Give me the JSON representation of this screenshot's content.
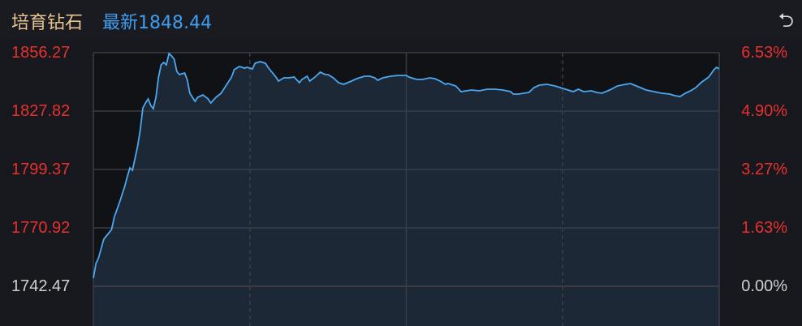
{
  "header": {
    "title": "培育钻石",
    "latest_label": "最新",
    "latest_value": "1848.44",
    "back_icon": "return-arrow-icon"
  },
  "colors": {
    "up": "#e8302e",
    "neutral": "#cfcfcf",
    "line": "#4aa8f2",
    "fill": "#1d2836",
    "title": "#e6c38f",
    "latest": "#3f9ef0"
  },
  "chart_data": {
    "type": "area",
    "title": "",
    "xlabel": "",
    "ylabel": "",
    "xlim": [
      0,
      240
    ],
    "ylim": [
      1742.47,
      1856.27
    ],
    "grid": true,
    "left_ticks": [
      "1856.27",
      "1827.82",
      "1799.37",
      "1770.92",
      "1742.47"
    ],
    "right_ticks": [
      "6.53%",
      "4.90%",
      "3.27%",
      "1.63%",
      "0.00%"
    ],
    "x": [
      0,
      1,
      2,
      4,
      6,
      7,
      8,
      10,
      12,
      13,
      14,
      15,
      16,
      17,
      18,
      19,
      20,
      21,
      22,
      23,
      24,
      25,
      26,
      27,
      28,
      29,
      30,
      31,
      32,
      33,
      35,
      36,
      37,
      39,
      40,
      42,
      44,
      45,
      47,
      49,
      51,
      53,
      54,
      56,
      58,
      59,
      61,
      62,
      64,
      66,
      67,
      68,
      70,
      71,
      73,
      75,
      77,
      79,
      80,
      82,
      83,
      85,
      87,
      89,
      90,
      92,
      94,
      96,
      99,
      101,
      104,
      106,
      108,
      109,
      111,
      114,
      117,
      120,
      121,
      124,
      126,
      129,
      131,
      133,
      135,
      136,
      139,
      141,
      143,
      145,
      148,
      151,
      154,
      157,
      160,
      161,
      163,
      167,
      169,
      171,
      174,
      177,
      180,
      182,
      184,
      186,
      188,
      191,
      193,
      195,
      198,
      201,
      204,
      206,
      209,
      212,
      215,
      218,
      221,
      223,
      225,
      227,
      229,
      231,
      233,
      236,
      238,
      239,
      240
    ],
    "values": [
      1746.42,
      1753.53,
      1756.3,
      1765.39,
      1768.55,
      1770.13,
      1776.06,
      1783.17,
      1791.07,
      1795.81,
      1800.16,
      1798.97,
      1804.9,
      1810.83,
      1818.73,
      1829.4,
      1831.77,
      1833.75,
      1830.59,
      1829.01,
      1834.54,
      1844.42,
      1850.34,
      1851.53,
      1850.34,
      1855.87,
      1854.69,
      1853.11,
      1847.18,
      1845.6,
      1846.39,
      1843.23,
      1836.51,
      1832.56,
      1834.54,
      1835.72,
      1833.75,
      1831.77,
      1834.54,
      1836.51,
      1840.46,
      1844.42,
      1847.97,
      1849.55,
      1848.76,
      1849.16,
      1848.37,
      1851.13,
      1851.92,
      1851.13,
      1849.16,
      1847.58,
      1844.42,
      1842.44,
      1844.02,
      1844.02,
      1844.42,
      1841.65,
      1843.23,
      1844.81,
      1842.44,
      1844.42,
      1846.79,
      1845.6,
      1845.6,
      1844.02,
      1841.65,
      1840.86,
      1842.44,
      1843.63,
      1844.81,
      1844.81,
      1844.02,
      1842.84,
      1844.02,
      1844.81,
      1845.21,
      1845.21,
      1844.42,
      1843.23,
      1843.23,
      1844.02,
      1843.63,
      1842.44,
      1840.86,
      1841.25,
      1840.07,
      1837.3,
      1837.7,
      1838.09,
      1837.7,
      1838.49,
      1838.49,
      1838.09,
      1837.3,
      1836.12,
      1836.12,
      1836.91,
      1839.28,
      1840.46,
      1840.86,
      1840.07,
      1838.88,
      1838.09,
      1837.3,
      1838.49,
      1837.3,
      1837.7,
      1836.91,
      1836.51,
      1838.09,
      1840.07,
      1840.86,
      1841.25,
      1839.67,
      1838.09,
      1837.3,
      1836.51,
      1836.12,
      1835.33,
      1834.93,
      1836.51,
      1837.7,
      1839.28,
      1841.65,
      1844.42,
      1847.97,
      1849.16,
      1848.44
    ]
  }
}
